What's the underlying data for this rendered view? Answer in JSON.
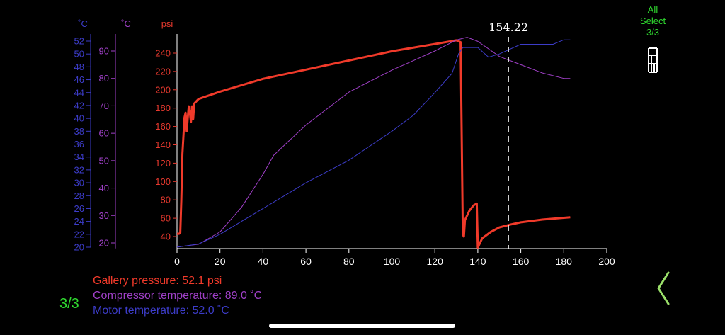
{
  "chart_data": {
    "type": "line",
    "x_axis": {
      "min": 0,
      "max": 200,
      "ticks": [
        0,
        20,
        40,
        60,
        80,
        100,
        120,
        140,
        160,
        180,
        200
      ]
    },
    "cursor": {
      "x": 154.22,
      "label": "154.22"
    },
    "axes": [
      {
        "id": "motor",
        "unit": "˚C",
        "color": "#3c3cc8",
        "min": 20,
        "max": 53,
        "ticks": [
          20,
          22,
          24,
          26,
          28,
          30,
          32,
          34,
          36,
          38,
          40,
          42,
          44,
          46,
          48,
          50,
          52
        ]
      },
      {
        "id": "comp",
        "unit": "˚C",
        "color": "#a040c8",
        "min": 18,
        "max": 96,
        "ticks": [
          20,
          30,
          40,
          50,
          60,
          70,
          80,
          90
        ]
      },
      {
        "id": "press",
        "unit": "psi",
        "color": "#e8392e",
        "min": 26,
        "max": 260,
        "ticks": [
          40,
          60,
          80,
          100,
          120,
          140,
          160,
          180,
          200,
          220,
          240
        ]
      }
    ],
    "series": [
      {
        "name": "Gallery pressure",
        "axis": "press",
        "color": "#f03a2a",
        "width": 3,
        "points": [
          [
            0,
            43
          ],
          [
            1,
            43
          ],
          [
            1.5,
            44
          ],
          [
            2,
            80
          ],
          [
            2.5,
            130
          ],
          [
            3,
            150
          ],
          [
            3.5,
            170
          ],
          [
            4,
            175
          ],
          [
            4.5,
            155
          ],
          [
            5,
            170
          ],
          [
            5.5,
            182
          ],
          [
            6,
            175
          ],
          [
            6.5,
            165
          ],
          [
            7,
            182
          ],
          [
            7.5,
            168
          ],
          [
            8,
            185
          ],
          [
            10,
            190
          ],
          [
            20,
            198
          ],
          [
            40,
            212
          ],
          [
            60,
            222
          ],
          [
            80,
            232
          ],
          [
            100,
            242
          ],
          [
            120,
            250
          ],
          [
            130,
            254
          ],
          [
            132,
            252
          ],
          [
            132.5,
            150
          ],
          [
            133,
            42
          ],
          [
            133.5,
            40
          ],
          [
            134,
            58
          ],
          [
            136,
            68
          ],
          [
            138,
            74
          ],
          [
            139.5,
            76
          ],
          [
            140,
            28
          ],
          [
            142,
            38
          ],
          [
            146,
            45
          ],
          [
            150,
            50
          ],
          [
            155,
            53
          ],
          [
            160,
            55.5
          ],
          [
            170,
            58.5
          ],
          [
            180,
            60.5
          ],
          [
            183,
            61
          ]
        ]
      },
      {
        "name": "Compressor temperature",
        "axis": "comp",
        "color": "#a040c8",
        "width": 1,
        "points": [
          [
            0,
            18.5
          ],
          [
            10,
            19.5
          ],
          [
            20,
            24
          ],
          [
            30,
            33
          ],
          [
            40,
            45
          ],
          [
            45,
            52
          ],
          [
            60,
            63
          ],
          [
            80,
            75
          ],
          [
            100,
            83
          ],
          [
            110,
            86.5
          ],
          [
            120,
            90
          ],
          [
            130,
            94
          ],
          [
            135,
            95
          ],
          [
            140,
            93.5
          ],
          [
            150,
            88
          ],
          [
            160,
            85
          ],
          [
            170,
            82
          ],
          [
            180,
            80
          ],
          [
            183,
            80
          ]
        ]
      },
      {
        "name": "Motor temperature",
        "axis": "motor",
        "color": "#3c3cc8",
        "width": 1,
        "points": [
          [
            0,
            20
          ],
          [
            10,
            20.5
          ],
          [
            20,
            22
          ],
          [
            30,
            24
          ],
          [
            40,
            26
          ],
          [
            50,
            28
          ],
          [
            60,
            30
          ],
          [
            80,
            33.5
          ],
          [
            100,
            38
          ],
          [
            110,
            40.5
          ],
          [
            120,
            44
          ],
          [
            128,
            47
          ],
          [
            131,
            50
          ],
          [
            133,
            51
          ],
          [
            140,
            51
          ],
          [
            145,
            49.5
          ],
          [
            150,
            50
          ],
          [
            160,
            51.5
          ],
          [
            170,
            51.5
          ],
          [
            175,
            51.5
          ],
          [
            180,
            52.2
          ],
          [
            183,
            52.2
          ]
        ]
      }
    ]
  },
  "legend": {
    "pressure": "Gallery pressure: 52.1 psi",
    "compressor": "Compressor temperature: 89.0 ˚C",
    "motor": "Motor temperature: 52.0 ˚C"
  },
  "side": {
    "line1": "All",
    "line2": "Select",
    "line3": "3/3"
  },
  "page_indicator": "3/3",
  "colors": {
    "accent_green": "#2fd92f",
    "axis_white": "#ffffff"
  }
}
